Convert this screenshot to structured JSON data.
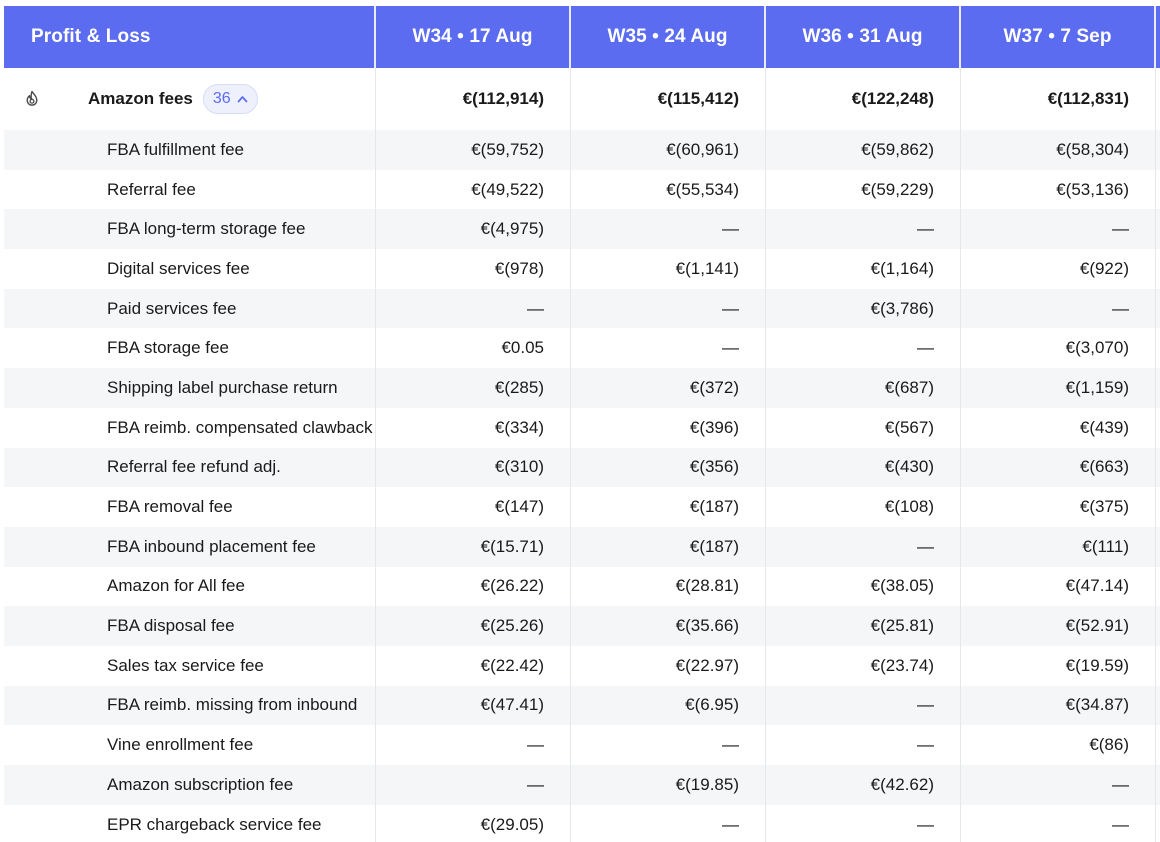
{
  "header": {
    "title": "Profit & Loss",
    "weeks": [
      "W34 • 17 Aug",
      "W35 • 24 Aug",
      "W36 • 31 Aug",
      "W37 • 7 Sep"
    ]
  },
  "group": {
    "label": "Amazon fees",
    "count": "36",
    "icon": "flame-icon",
    "totals": [
      "€(112,914)",
      "€(115,412)",
      "€(122,248)",
      "€(112,831)"
    ]
  },
  "rows": [
    {
      "label": "FBA fulfillment fee",
      "values": [
        "€(59,752)",
        "€(60,961)",
        "€(59,862)",
        "€(58,304)"
      ]
    },
    {
      "label": "Referral fee",
      "values": [
        "€(49,522)",
        "€(55,534)",
        "€(59,229)",
        "€(53,136)"
      ]
    },
    {
      "label": "FBA long-term storage fee",
      "values": [
        "€(4,975)",
        "—",
        "—",
        "—"
      ]
    },
    {
      "label": "Digital services fee",
      "values": [
        "€(978)",
        "€(1,141)",
        "€(1,164)",
        "€(922)"
      ]
    },
    {
      "label": "Paid services fee",
      "values": [
        "—",
        "—",
        "€(3,786)",
        "—"
      ]
    },
    {
      "label": "FBA storage fee",
      "values": [
        "€0.05",
        "—",
        "—",
        "€(3,070)"
      ]
    },
    {
      "label": "Shipping label purchase return",
      "values": [
        "€(285)",
        "€(372)",
        "€(687)",
        "€(1,159)"
      ]
    },
    {
      "label": "FBA reimb. compensated clawback",
      "values": [
        "€(334)",
        "€(396)",
        "€(567)",
        "€(439)"
      ]
    },
    {
      "label": "Referral fee refund adj.",
      "values": [
        "€(310)",
        "€(356)",
        "€(430)",
        "€(663)"
      ]
    },
    {
      "label": "FBA removal fee",
      "values": [
        "€(147)",
        "€(187)",
        "€(108)",
        "€(375)"
      ]
    },
    {
      "label": "FBA inbound placement fee",
      "values": [
        "€(15.71)",
        "€(187)",
        "—",
        "€(111)"
      ]
    },
    {
      "label": "Amazon for All fee",
      "values": [
        "€(26.22)",
        "€(28.81)",
        "€(38.05)",
        "€(47.14)"
      ]
    },
    {
      "label": "FBA disposal fee",
      "values": [
        "€(25.26)",
        "€(35.66)",
        "€(25.81)",
        "€(52.91)"
      ]
    },
    {
      "label": "Sales tax service fee",
      "values": [
        "€(22.42)",
        "€(22.97)",
        "€(23.74)",
        "€(19.59)"
      ]
    },
    {
      "label": "FBA reimb. missing from inbound",
      "values": [
        "€(47.41)",
        "€(6.95)",
        "—",
        "€(34.87)"
      ]
    },
    {
      "label": "Vine enrollment fee",
      "values": [
        "—",
        "—",
        "—",
        "€(86)"
      ]
    },
    {
      "label": "Amazon subscription fee",
      "values": [
        "—",
        "€(19.85)",
        "€(42.62)",
        "—"
      ]
    },
    {
      "label": "EPR chargeback service fee",
      "values": [
        "€(29.05)",
        "—",
        "—",
        "—"
      ]
    }
  ],
  "colors": {
    "header_bg": "#5b6cf0",
    "alt_row_bg": "#f5f6f8",
    "badge_bg": "#eef0fc",
    "badge_text": "#5b6cf0"
  }
}
